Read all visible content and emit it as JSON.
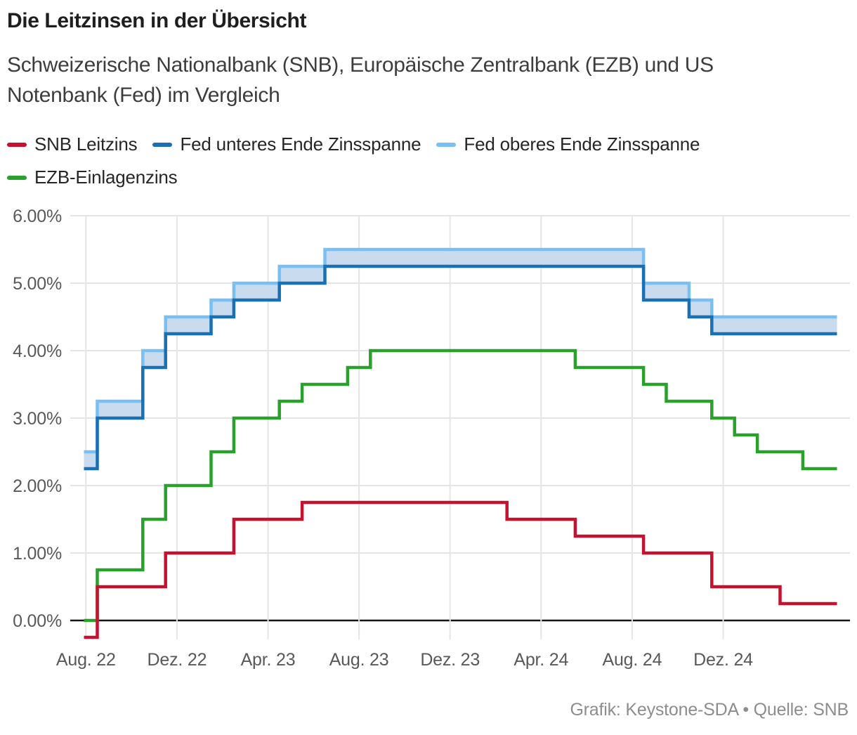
{
  "header": {
    "title": "Die Leitzinsen in der Übersicht",
    "subtitle_lines": [
      "Schweizerische Nationalbank (SNB), Europäische Zentralbank (EZB) und US",
      "Notenbank (Fed) im Vergleich"
    ]
  },
  "legend": [
    {
      "id": "snb",
      "label": "SNB Leitzins",
      "color": "#c51230"
    },
    {
      "id": "fed_lower",
      "label": "Fed unteres Ende Zinsspanne",
      "color": "#1b6fb3"
    },
    {
      "id": "fed_upper",
      "label": "Fed oberes Ende Zinsspanne",
      "color": "#7abff2"
    },
    {
      "id": "ezb",
      "label": "EZB-Einlagenzins",
      "color": "#2aa02d"
    }
  ],
  "footer": {
    "credit": "Grafik: Keystone-SDA • Quelle: SNB"
  },
  "chart_data": {
    "type": "line",
    "step": true,
    "unit": "%",
    "title": "Die Leitzinsen in der Übersicht",
    "ylim": [
      -0.3,
      6.0
    ],
    "grid": true,
    "legend_position": "top",
    "x_start_month": "2022-08",
    "x_end_month": "2025-05",
    "y_axis": {
      "ticks": [
        {
          "label": "0.00%",
          "value": 0
        },
        {
          "label": "1.00%",
          "value": 1
        },
        {
          "label": "2.00%",
          "value": 2
        },
        {
          "label": "3.00%",
          "value": 3
        },
        {
          "label": "4.00%",
          "value": 4
        },
        {
          "label": "5.00%",
          "value": 5
        },
        {
          "label": "6.00%",
          "value": 6
        }
      ]
    },
    "x_axis": {
      "ticks": [
        {
          "label": "Aug. 22",
          "month": "2022-08"
        },
        {
          "label": "Dez. 22",
          "month": "2022-12"
        },
        {
          "label": "Apr. 23",
          "month": "2023-04"
        },
        {
          "label": "Aug. 23",
          "month": "2023-08"
        },
        {
          "label": "Dez. 23",
          "month": "2023-12"
        },
        {
          "label": "Apr. 24",
          "month": "2024-04"
        },
        {
          "label": "Aug. 24",
          "month": "2024-08"
        },
        {
          "label": "Dez. 24",
          "month": "2024-12"
        }
      ]
    },
    "band": {
      "upper": "fed_upper",
      "lower": "fed_lower",
      "fill": "#c8dbef"
    },
    "series": [
      {
        "id": "fed_upper",
        "name": "Fed oberes Ende Zinsspanne",
        "color": "#7abff2",
        "points": [
          [
            "2022-08",
            2.5
          ],
          [
            "2022-09",
            3.25
          ],
          [
            "2022-11",
            4.0
          ],
          [
            "2022-12",
            4.5
          ],
          [
            "2023-02",
            4.75
          ],
          [
            "2023-03",
            5.0
          ],
          [
            "2023-05",
            5.25
          ],
          [
            "2023-07",
            5.5
          ],
          [
            "2024-09",
            5.0
          ],
          [
            "2024-11",
            4.75
          ],
          [
            "2024-12",
            4.5
          ]
        ]
      },
      {
        "id": "fed_lower",
        "name": "Fed unteres Ende Zinsspanne",
        "color": "#1b6fb3",
        "points": [
          [
            "2022-08",
            2.25
          ],
          [
            "2022-09",
            3.0
          ],
          [
            "2022-11",
            3.75
          ],
          [
            "2022-12",
            4.25
          ],
          [
            "2023-02",
            4.5
          ],
          [
            "2023-03",
            4.75
          ],
          [
            "2023-05",
            5.0
          ],
          [
            "2023-07",
            5.25
          ],
          [
            "2024-09",
            4.75
          ],
          [
            "2024-11",
            4.5
          ],
          [
            "2024-12",
            4.25
          ]
        ]
      },
      {
        "id": "ezb",
        "name": "EZB-Einlagenzins",
        "color": "#2aa02d",
        "points": [
          [
            "2022-08",
            0.0
          ],
          [
            "2022-09",
            0.75
          ],
          [
            "2022-11",
            1.5
          ],
          [
            "2022-12",
            2.0
          ],
          [
            "2023-02",
            2.5
          ],
          [
            "2023-03",
            3.0
          ],
          [
            "2023-05",
            3.25
          ],
          [
            "2023-06",
            3.5
          ],
          [
            "2023-08",
            3.75
          ],
          [
            "2023-09",
            4.0
          ],
          [
            "2024-06",
            3.75
          ],
          [
            "2024-09",
            3.5
          ],
          [
            "2024-10",
            3.25
          ],
          [
            "2024-12",
            3.0
          ],
          [
            "2025-01",
            2.75
          ],
          [
            "2025-02",
            2.5
          ],
          [
            "2025-04",
            2.25
          ]
        ]
      },
      {
        "id": "snb",
        "name": "SNB Leitzins",
        "color": "#c51230",
        "points": [
          [
            "2022-08",
            -0.25
          ],
          [
            "2022-09",
            0.5
          ],
          [
            "2022-12",
            1.0
          ],
          [
            "2023-03",
            1.5
          ],
          [
            "2023-06",
            1.75
          ],
          [
            "2024-03",
            1.5
          ],
          [
            "2024-06",
            1.25
          ],
          [
            "2024-09",
            1.0
          ],
          [
            "2024-12",
            0.5
          ],
          [
            "2025-03",
            0.25
          ]
        ]
      }
    ]
  }
}
